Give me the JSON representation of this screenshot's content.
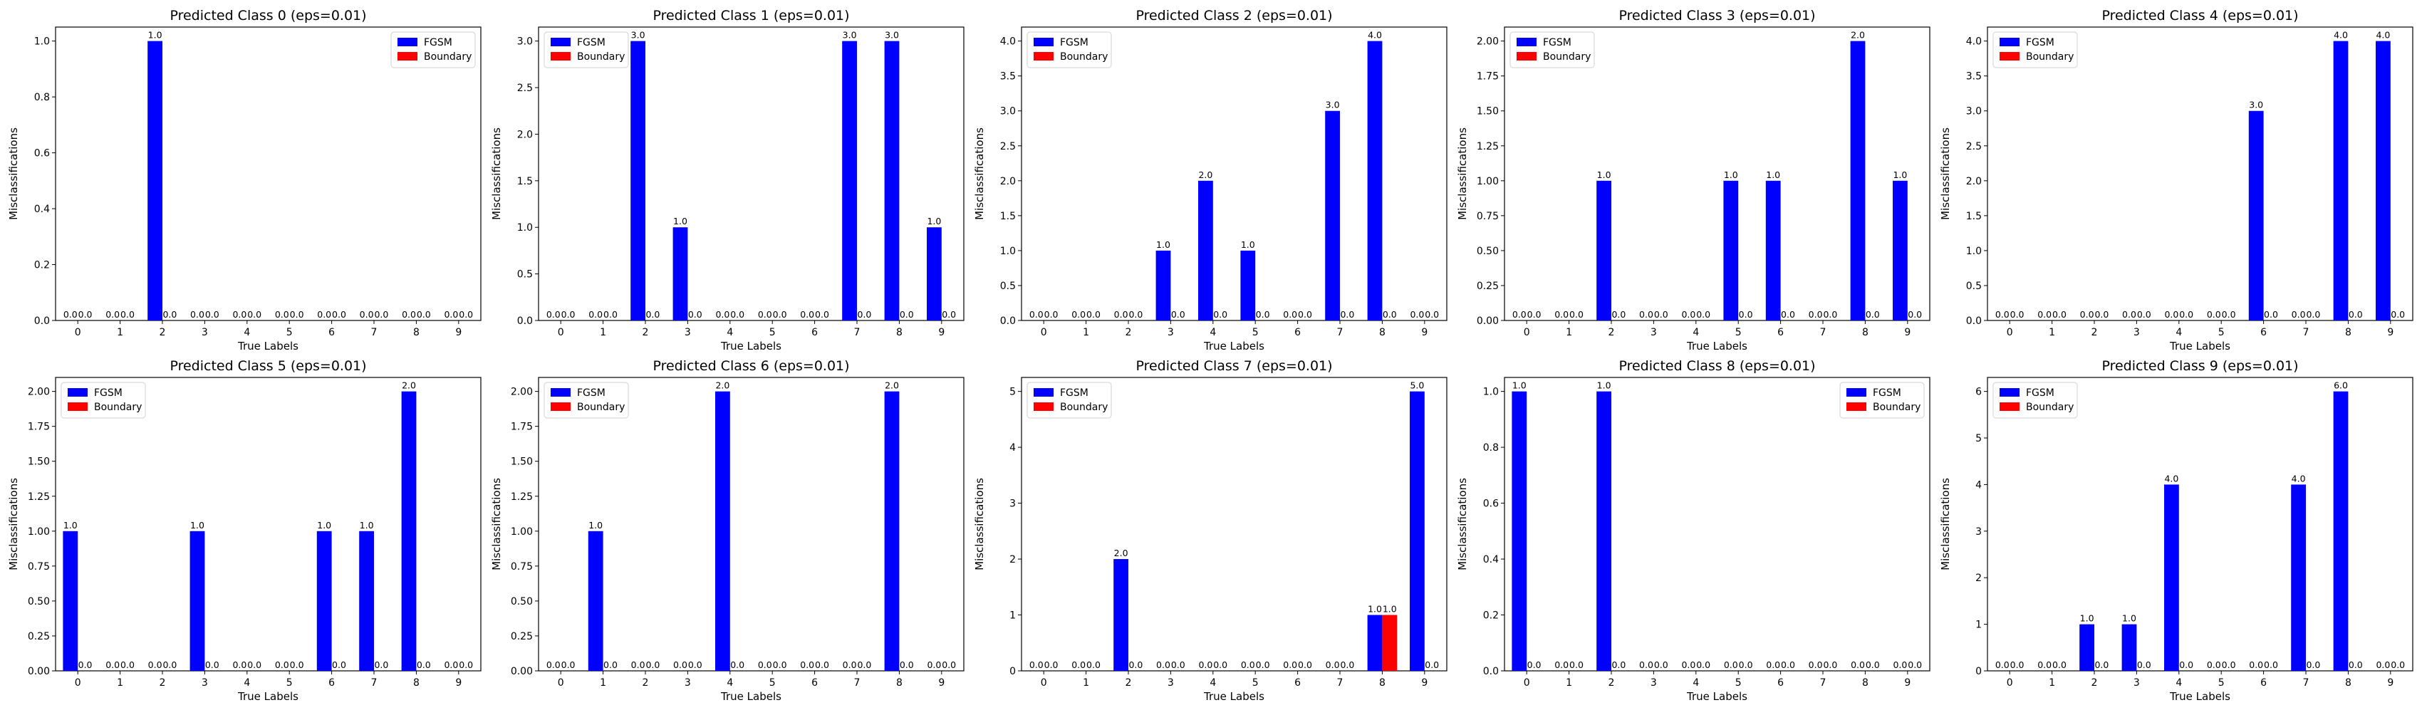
{
  "figure": {
    "colors": {
      "fgsm": "#0000ff",
      "boundary": "#ff0000",
      "axes": "#000000",
      "background": "#ffffff"
    }
  },
  "chart_data": [
    {
      "type": "bar",
      "title": "Predicted Class 0 (eps=0.01)",
      "xlabel": "True Labels",
      "ylabel": "Misclassifications",
      "categories": [
        "0",
        "1",
        "2",
        "3",
        "4",
        "5",
        "6",
        "7",
        "8",
        "9"
      ],
      "series": [
        {
          "name": "FGSM",
          "values": [
            0,
            0,
            1,
            0,
            0,
            0,
            0,
            0,
            0,
            0
          ]
        },
        {
          "name": "Boundary",
          "values": [
            0,
            0,
            0,
            0,
            0,
            0,
            0,
            0,
            0,
            0
          ]
        }
      ],
      "ylim": [
        0,
        1.05
      ],
      "yticks": [
        "0.0",
        "0.2",
        "0.4",
        "0.6",
        "0.8",
        "1.0"
      ],
      "legend": "upper right",
      "data_labels": [
        [
          "0.0",
          "0.0",
          "1.0",
          "0.0",
          "0.0",
          "0.0",
          "0.0",
          "0.0",
          "0.0",
          "0.0"
        ],
        [
          "0.0",
          "0.0",
          "0.0",
          "0.0",
          "0.0",
          "0.0",
          "0.0",
          "0.0",
          "0.0",
          "0.0"
        ]
      ]
    },
    {
      "type": "bar",
      "title": "Predicted Class 1 (eps=0.01)",
      "xlabel": "True Labels",
      "ylabel": "Misclassifications",
      "categories": [
        "0",
        "1",
        "2",
        "3",
        "4",
        "5",
        "6",
        "7",
        "8",
        "9"
      ],
      "series": [
        {
          "name": "FGSM",
          "values": [
            0,
            0,
            3,
            1,
            0,
            0,
            0,
            3,
            3,
            1
          ]
        },
        {
          "name": "Boundary",
          "values": [
            0,
            0,
            0,
            0,
            0,
            0,
            0,
            0,
            0,
            0
          ]
        }
      ],
      "ylim": [
        0,
        3.15
      ],
      "yticks": [
        "0.0",
        "0.5",
        "1.0",
        "1.5",
        "2.0",
        "2.5",
        "3.0"
      ],
      "legend": "upper left",
      "data_labels": [
        [
          "0.0",
          "0.0",
          "3.0",
          "1.0",
          "0.0",
          "0.0",
          "0.0",
          "3.0",
          "3.0",
          "1.0"
        ],
        [
          "0.0",
          "0.0",
          "0.0",
          "0.0",
          "0.0",
          "0.0",
          "0.0",
          "0.0",
          "0.0",
          "0.0"
        ]
      ]
    },
    {
      "type": "bar",
      "title": "Predicted Class 2 (eps=0.01)",
      "xlabel": "True Labels",
      "ylabel": "Misclassifications",
      "categories": [
        "0",
        "1",
        "2",
        "3",
        "4",
        "5",
        "6",
        "7",
        "8",
        "9"
      ],
      "series": [
        {
          "name": "FGSM",
          "values": [
            0,
            0,
            0,
            1,
            2,
            1,
            0,
            3,
            4,
            0
          ]
        },
        {
          "name": "Boundary",
          "values": [
            0,
            0,
            0,
            0,
            0,
            0,
            0,
            0,
            0,
            0
          ]
        }
      ],
      "ylim": [
        0,
        4.2
      ],
      "yticks": [
        "0.0",
        "0.5",
        "1.0",
        "1.5",
        "2.0",
        "2.5",
        "3.0",
        "3.5",
        "4.0"
      ],
      "legend": "upper left",
      "data_labels": [
        [
          "0.0",
          "0.0",
          "0.0",
          "1.0",
          "2.0",
          "1.0",
          "0.0",
          "3.0",
          "4.0",
          "0.0"
        ],
        [
          "0.0",
          "0.0",
          "0.0",
          "0.0",
          "0.0",
          "0.0",
          "0.0",
          "0.0",
          "0.0",
          "0.0"
        ]
      ]
    },
    {
      "type": "bar",
      "title": "Predicted Class 3 (eps=0.01)",
      "xlabel": "True Labels",
      "ylabel": "Misclassifications",
      "categories": [
        "0",
        "1",
        "2",
        "3",
        "4",
        "5",
        "6",
        "7",
        "8",
        "9"
      ],
      "series": [
        {
          "name": "FGSM",
          "values": [
            0,
            0,
            1,
            0,
            0,
            1,
            1,
            0,
            2,
            1
          ]
        },
        {
          "name": "Boundary",
          "values": [
            0,
            0,
            0,
            0,
            0,
            0,
            0,
            0,
            0,
            0
          ]
        }
      ],
      "ylim": [
        0,
        2.1
      ],
      "yticks": [
        "0.00",
        "0.25",
        "0.50",
        "0.75",
        "1.00",
        "1.25",
        "1.50",
        "1.75",
        "2.00"
      ],
      "legend": "upper left",
      "data_labels": [
        [
          "0.0",
          "0.0",
          "1.0",
          "0.0",
          "0.0",
          "1.0",
          "1.0",
          "0.0",
          "2.0",
          "1.0"
        ],
        [
          "0.0",
          "0.0",
          "0.0",
          "0.0",
          "0.0",
          "0.0",
          "0.0",
          "0.0",
          "0.0",
          "0.0"
        ]
      ]
    },
    {
      "type": "bar",
      "title": "Predicted Class 4 (eps=0.01)",
      "xlabel": "True Labels",
      "ylabel": "Misclassifications",
      "categories": [
        "0",
        "1",
        "2",
        "3",
        "4",
        "5",
        "6",
        "7",
        "8",
        "9"
      ],
      "series": [
        {
          "name": "FGSM",
          "values": [
            0,
            0,
            0,
            0,
            0,
            0,
            3,
            0,
            4,
            4
          ]
        },
        {
          "name": "Boundary",
          "values": [
            0,
            0,
            0,
            0,
            0,
            0,
            0,
            0,
            0,
            0
          ]
        }
      ],
      "ylim": [
        0,
        4.2
      ],
      "yticks": [
        "0.0",
        "0.5",
        "1.0",
        "1.5",
        "2.0",
        "2.5",
        "3.0",
        "3.5",
        "4.0"
      ],
      "legend": "upper left",
      "data_labels": [
        [
          "0.0",
          "0.0",
          "0.0",
          "0.0",
          "0.0",
          "0.0",
          "3.0",
          "0.0",
          "4.0",
          "4.0"
        ],
        [
          "0.0",
          "0.0",
          "0.0",
          "0.0",
          "0.0",
          "0.0",
          "0.0",
          "0.0",
          "0.0",
          "0.0"
        ]
      ]
    },
    {
      "type": "bar",
      "title": "Predicted Class 5 (eps=0.01)",
      "xlabel": "True Labels",
      "ylabel": "Misclassifications",
      "categories": [
        "0",
        "1",
        "2",
        "3",
        "4",
        "5",
        "6",
        "7",
        "8",
        "9"
      ],
      "series": [
        {
          "name": "FGSM",
          "values": [
            1,
            0,
            0,
            1,
            0,
            0,
            1,
            1,
            2,
            0
          ]
        },
        {
          "name": "Boundary",
          "values": [
            0,
            0,
            0,
            0,
            0,
            0,
            0,
            0,
            0,
            0
          ]
        }
      ],
      "ylim": [
        0,
        2.1
      ],
      "yticks": [
        "0.00",
        "0.25",
        "0.50",
        "0.75",
        "1.00",
        "1.25",
        "1.50",
        "1.75",
        "2.00"
      ],
      "legend": "upper left",
      "data_labels": [
        [
          "1.0",
          "0.0",
          "0.0",
          "1.0",
          "0.0",
          "0.0",
          "1.0",
          "1.0",
          "2.0",
          "0.0"
        ],
        [
          "0.0",
          "0.0",
          "0.0",
          "0.0",
          "0.0",
          "0.0",
          "0.0",
          "0.0",
          "0.0",
          "0.0"
        ]
      ]
    },
    {
      "type": "bar",
      "title": "Predicted Class 6 (eps=0.01)",
      "xlabel": "True Labels",
      "ylabel": "Misclassifications",
      "categories": [
        "0",
        "1",
        "2",
        "3",
        "4",
        "5",
        "6",
        "7",
        "8",
        "9"
      ],
      "series": [
        {
          "name": "FGSM",
          "values": [
            0,
            1,
            0,
            0,
            2,
            0,
            0,
            0,
            2,
            0
          ]
        },
        {
          "name": "Boundary",
          "values": [
            0,
            0,
            0,
            0,
            0,
            0,
            0,
            0,
            0,
            0
          ]
        }
      ],
      "ylim": [
        0,
        2.1
      ],
      "yticks": [
        "0.00",
        "0.25",
        "0.50",
        "0.75",
        "1.00",
        "1.25",
        "1.50",
        "1.75",
        "2.00"
      ],
      "legend": "upper left",
      "data_labels": [
        [
          "0.0",
          "1.0",
          "0.0",
          "0.0",
          "2.0",
          "0.0",
          "0.0",
          "0.0",
          "2.0",
          "0.0"
        ],
        [
          "0.0",
          "0.0",
          "0.0",
          "0.0",
          "0.0",
          "0.0",
          "0.0",
          "0.0",
          "0.0",
          "0.0"
        ]
      ]
    },
    {
      "type": "bar",
      "title": "Predicted Class 7 (eps=0.01)",
      "xlabel": "True Labels",
      "ylabel": "Misclassifications",
      "categories": [
        "0",
        "1",
        "2",
        "3",
        "4",
        "5",
        "6",
        "7",
        "8",
        "9"
      ],
      "series": [
        {
          "name": "FGSM",
          "values": [
            0,
            0,
            2,
            0,
            0,
            0,
            0,
            0,
            1,
            5
          ]
        },
        {
          "name": "Boundary",
          "values": [
            0,
            0,
            0,
            0,
            0,
            0,
            0,
            0,
            1,
            0
          ]
        }
      ],
      "ylim": [
        0,
        5.25
      ],
      "yticks": [
        "0",
        "1",
        "2",
        "3",
        "4",
        "5"
      ],
      "legend": "upper left",
      "data_labels": [
        [
          "0.0",
          "0.0",
          "2.0",
          "0.0",
          "0.0",
          "0.0",
          "0.0",
          "0.0",
          "1.0",
          "5.0"
        ],
        [
          "0.0",
          "0.0",
          "0.0",
          "0.0",
          "0.0",
          "0.0",
          "0.0",
          "0.0",
          "1.0",
          "0.0"
        ]
      ]
    },
    {
      "type": "bar",
      "title": "Predicted Class 8 (eps=0.01)",
      "xlabel": "True Labels",
      "ylabel": "Misclassifications",
      "categories": [
        "0",
        "1",
        "2",
        "3",
        "4",
        "5",
        "6",
        "7",
        "8",
        "9"
      ],
      "series": [
        {
          "name": "FGSM",
          "values": [
            1,
            0,
            1,
            0,
            0,
            0,
            0,
            0,
            0,
            0
          ]
        },
        {
          "name": "Boundary",
          "values": [
            0,
            0,
            0,
            0,
            0,
            0,
            0,
            0,
            0,
            0
          ]
        }
      ],
      "ylim": [
        0,
        1.05
      ],
      "yticks": [
        "0.0",
        "0.2",
        "0.4",
        "0.6",
        "0.8",
        "1.0"
      ],
      "legend": "upper right",
      "data_labels": [
        [
          "1.0",
          "0.0",
          "1.0",
          "0.0",
          "0.0",
          "0.0",
          "0.0",
          "0.0",
          "0.0",
          "0.0"
        ],
        [
          "0.0",
          "0.0",
          "0.0",
          "0.0",
          "0.0",
          "0.0",
          "0.0",
          "0.0",
          "0.0",
          "0.0"
        ]
      ]
    },
    {
      "type": "bar",
      "title": "Predicted Class 9 (eps=0.01)",
      "xlabel": "True Labels",
      "ylabel": "Misclassifications",
      "categories": [
        "0",
        "1",
        "2",
        "3",
        "4",
        "5",
        "6",
        "7",
        "8",
        "9"
      ],
      "series": [
        {
          "name": "FGSM",
          "values": [
            0,
            0,
            1,
            1,
            4,
            0,
            0,
            4,
            6,
            0
          ]
        },
        {
          "name": "Boundary",
          "values": [
            0,
            0,
            0,
            0,
            0,
            0,
            0,
            0,
            0,
            0
          ]
        }
      ],
      "ylim": [
        0,
        6.3
      ],
      "yticks": [
        "0",
        "1",
        "2",
        "3",
        "4",
        "5",
        "6"
      ],
      "legend": "upper left",
      "data_labels": [
        [
          "0.0",
          "0.0",
          "1.0",
          "1.0",
          "4.0",
          "0.0",
          "0.0",
          "4.0",
          "6.0",
          "0.0"
        ],
        [
          "0.0",
          "0.0",
          "0.0",
          "0.0",
          "0.0",
          "0.0",
          "0.0",
          "0.0",
          "0.0",
          "0.0"
        ]
      ]
    }
  ]
}
